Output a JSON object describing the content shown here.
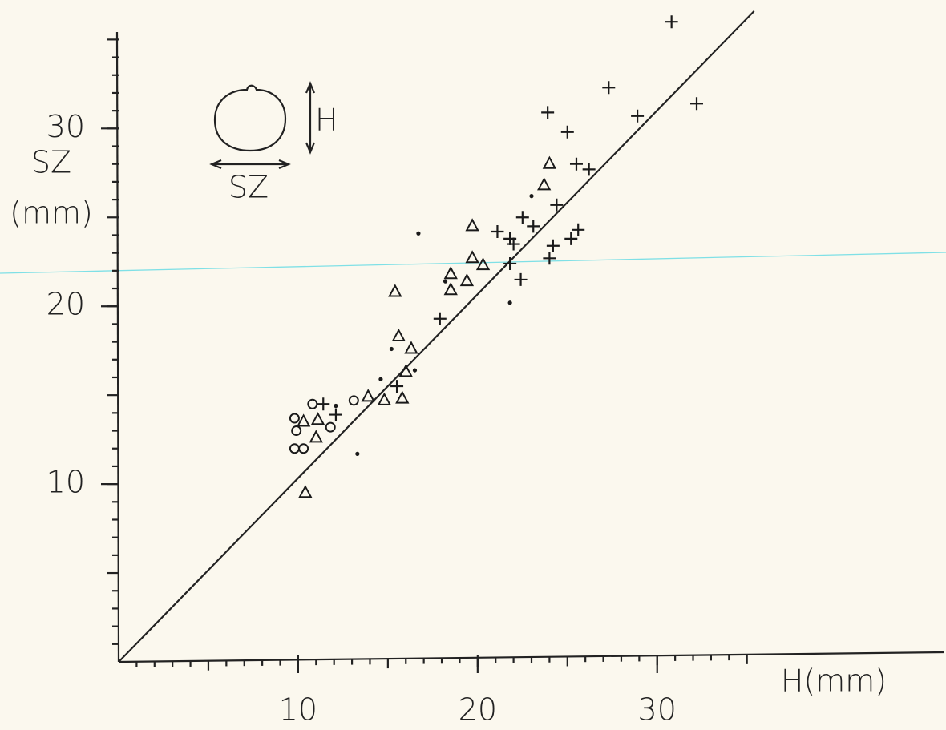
{
  "chart_data": {
    "type": "scatter",
    "xlabel": "H(mm)",
    "ylabel": [
      "SZ",
      "(mm)"
    ],
    "inset_labels": {
      "height": "H",
      "width": "SZ"
    },
    "xlim": [
      0,
      46
    ],
    "ylim": [
      0,
      37
    ],
    "xticks": [
      10,
      20,
      30
    ],
    "yticks": [
      10,
      20,
      30
    ],
    "minor_tick_step": 1,
    "reference_line": {
      "x": [
        0,
        35.4
      ],
      "y": [
        0,
        36.6
      ]
    },
    "series": [
      {
        "marker": "plus",
        "color": "#1a1a1a",
        "x": [
          30.8,
          27.3,
          32.2,
          23.9,
          25.0,
          28.9,
          25.5,
          26.2,
          24.4,
          22.5,
          23.1,
          21.1,
          21.8,
          22.0,
          25.6,
          25.2,
          24.2,
          24.0,
          21.8,
          22.4,
          17.9,
          15.5,
          11.4,
          12.1
        ],
        "y": [
          36.0,
          32.3,
          31.4,
          30.9,
          29.8,
          30.7,
          28.0,
          27.7,
          25.7,
          25.0,
          24.5,
          24.2,
          23.8,
          23.5,
          24.3,
          23.8,
          23.4,
          22.7,
          22.4,
          21.5,
          19.3,
          15.5,
          14.5,
          13.9
        ]
      },
      {
        "marker": "triangle",
        "color": "#1a1a1a",
        "x": [
          24.0,
          23.7,
          19.7,
          19.7,
          20.3,
          18.5,
          19.4,
          18.5,
          15.4,
          15.6,
          16.3,
          16.0,
          13.9,
          14.8,
          15.8,
          11.1,
          10.3,
          11.0,
          10.4
        ],
        "y": [
          28.0,
          26.8,
          24.5,
          22.7,
          22.3,
          21.8,
          21.4,
          20.9,
          20.8,
          18.3,
          17.6,
          16.3,
          14.9,
          14.7,
          14.8,
          13.6,
          13.5,
          12.6,
          9.5
        ]
      },
      {
        "marker": "dot",
        "color": "#1a1a1a",
        "x": [
          16.7,
          23.0,
          18.2,
          21.8,
          15.2,
          14.6,
          16.5,
          12.1,
          13.3
        ],
        "y": [
          24.1,
          26.2,
          21.4,
          20.2,
          17.6,
          15.9,
          16.4,
          14.4,
          11.7
        ]
      },
      {
        "marker": "circle",
        "color": "#1a1a1a",
        "x": [
          10.8,
          13.1,
          9.8,
          9.9,
          11.8,
          9.8,
          10.3
        ],
        "y": [
          14.5,
          14.7,
          13.7,
          13.0,
          13.2,
          12.0,
          12.0
        ]
      }
    ]
  }
}
